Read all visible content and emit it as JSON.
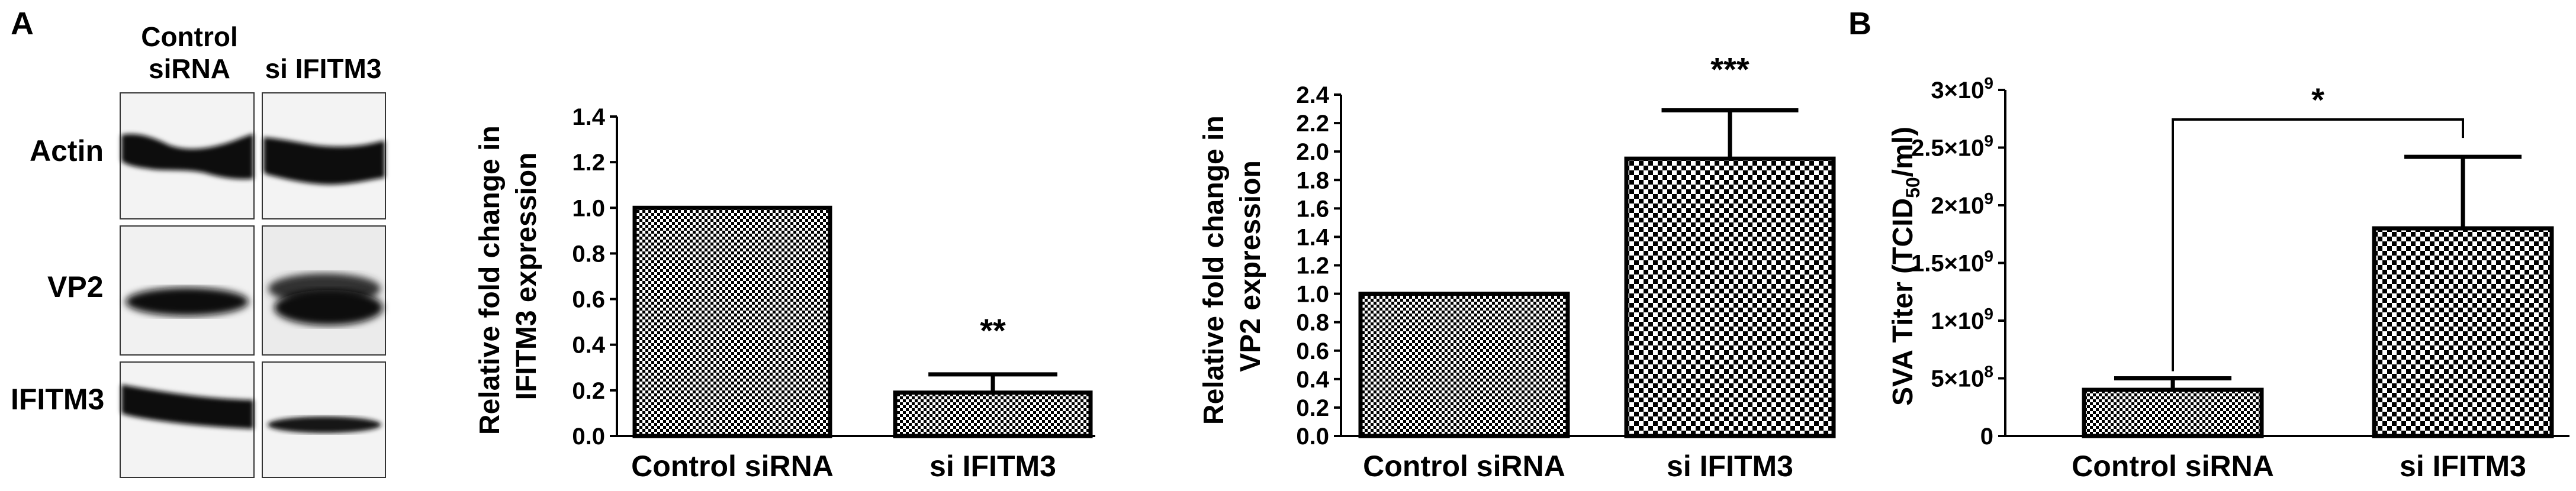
{
  "panel_labels": {
    "a": "A",
    "b": "B"
  },
  "western_blot": {
    "columns": [
      {
        "lines": [
          "Control",
          "siRNA"
        ]
      },
      {
        "lines": [
          "si IFITM3"
        ]
      }
    ],
    "rows": [
      "Actin",
      "VP2",
      "IFITM3"
    ]
  },
  "colors": {
    "bar_stroke": "#000000",
    "pattern_dark": "#000000",
    "pattern_light": "#ffffff"
  },
  "chart_data": [
    {
      "type": "bar",
      "categories": [
        "Control siRNA",
        "si IFITM3"
      ],
      "values": [
        1.0,
        0.19
      ],
      "errors": [
        0,
        0.08
      ],
      "ylabel": "Relative fold change in IFITM3 expression",
      "ylabel_lines": [
        "Relative fold change in",
        "IFITM3 expression"
      ],
      "ylim": [
        0,
        1.4
      ],
      "yticks": [
        "0.0",
        "0.2",
        "0.4",
        "0.6",
        "0.8",
        "1.0",
        "1.2",
        "1.4"
      ],
      "significance": [
        "",
        "**"
      ]
    },
    {
      "type": "bar",
      "categories": [
        "Control siRNA",
        "si IFITM3"
      ],
      "values": [
        1.0,
        1.95
      ],
      "errors": [
        0,
        0.34
      ],
      "ylabel": "Relative fold change in VP2 expression",
      "ylabel_lines": [
        "Relative fold change in",
        "VP2 expression"
      ],
      "ylim": [
        0,
        2.4
      ],
      "yticks": [
        "0.0",
        "0.2",
        "0.4",
        "0.6",
        "0.8",
        "1.0",
        "1.2",
        "1.4",
        "1.6",
        "1.8",
        "2.0",
        "2.2",
        "2.4"
      ],
      "significance": [
        "",
        "***"
      ]
    },
    {
      "type": "bar",
      "categories": [
        "Control siRNA",
        "si IFITM3"
      ],
      "values": [
        400000000,
        1800000000
      ],
      "errors": [
        100000000,
        620000000
      ],
      "ylabel": "SVA Titer (TCID50/ml)",
      "ylabel_parts": {
        "base": "SVA Titer (TCID",
        "sub": "50",
        "end": "/ml)"
      },
      "ylim": [
        0,
        3000000000
      ],
      "yticks": [
        {
          "value": 0,
          "label": "0"
        },
        {
          "value": 500000000,
          "label": "5×10",
          "exp": "8"
        },
        {
          "value": 1000000000,
          "label": "1×10",
          "exp": "9"
        },
        {
          "value": 1500000000,
          "label": "1.5×10",
          "exp": "9"
        },
        {
          "value": 2000000000,
          "label": "2×10",
          "exp": "9"
        },
        {
          "value": 2500000000,
          "label": "2.5×10",
          "exp": "9"
        },
        {
          "value": 3000000000,
          "label": "3×10",
          "exp": "9"
        }
      ],
      "significance_bracket": "*"
    }
  ]
}
